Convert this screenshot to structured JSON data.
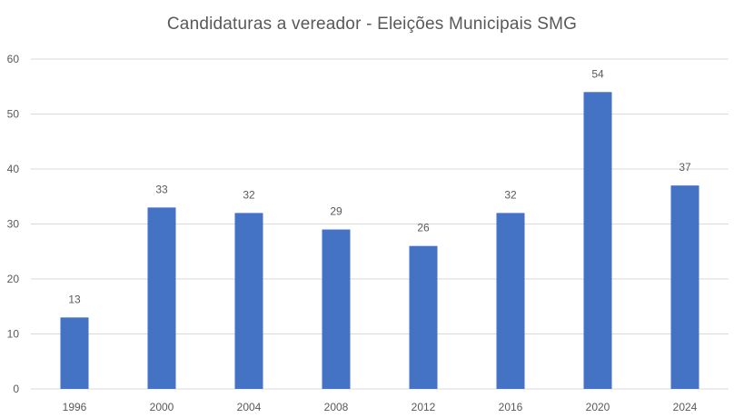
{
  "chart_data": {
    "type": "bar",
    "title": "Candidaturas a vereador - Eleições Municipais SMG",
    "xlabel": "",
    "ylabel": "",
    "categories": [
      "1996",
      "2000",
      "2004",
      "2008",
      "2012",
      "2016",
      "2020",
      "2024"
    ],
    "values": [
      13,
      33,
      32,
      29,
      26,
      32,
      54,
      37
    ],
    "data_labels": [
      "13",
      "33",
      "32",
      "29",
      "26",
      "32",
      "54",
      "37"
    ],
    "ylim": [
      0,
      60
    ],
    "yticks": [
      "0",
      "10",
      "20",
      "30",
      "40",
      "50",
      "60"
    ],
    "grid": true,
    "legend": "none",
    "colors": {
      "bar": "#4472C4",
      "grid": "#D9D9D9",
      "axis_text": "#595959",
      "title": "#595959"
    }
  }
}
